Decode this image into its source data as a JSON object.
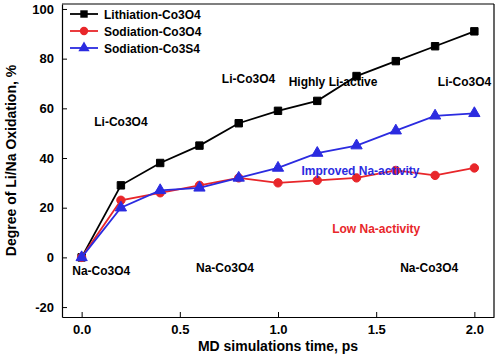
{
  "chart_data": {
    "type": "line",
    "x_label": "MD simulations time, ps",
    "y_label": "Degree of Li/Na Oxidation, %",
    "x": [
      0,
      0.2,
      0.4,
      0.6,
      0.8,
      1.0,
      1.2,
      1.4,
      1.6,
      1.8,
      2.0
    ],
    "series": [
      {
        "name": "Lithiation-Co3O4",
        "color": "#000000",
        "marker": "square",
        "line_style": "solid",
        "values": [
          0,
          29,
          38,
          45,
          54,
          59,
          63,
          73,
          79,
          85,
          91
        ]
      },
      {
        "name": "Sodiation-Co3O4",
        "color": "#e8262a",
        "marker": "circle",
        "line_style": "solid",
        "values": [
          0,
          23,
          26,
          29,
          32,
          30,
          31,
          32,
          35,
          33,
          36
        ]
      },
      {
        "name": "Sodiation-Co3S4",
        "color": "#2b2be0",
        "marker": "triangle",
        "line_style": "solid",
        "values": [
          0,
          20,
          27,
          28,
          32,
          36,
          42,
          45,
          51,
          57,
          58
        ]
      }
    ],
    "xlim": [
      -0.1,
      2.1
    ],
    "ylim": [
      -24,
      102
    ],
    "xticks": [
      {
        "value": 0,
        "label": "0.0"
      },
      {
        "value": 0.5,
        "label": "0.5"
      },
      {
        "value": 1,
        "label": "1.0"
      },
      {
        "value": 1.5,
        "label": "1.5"
      },
      {
        "value": 2,
        "label": "2.0"
      }
    ],
    "yticks": [
      -20,
      0,
      20,
      40,
      60,
      80,
      100
    ],
    "legend": "upper left",
    "annotations": [
      {
        "text": "Highly Li-active",
        "x": 1.28,
        "y": 69,
        "color": "#000000"
      },
      {
        "text": "Improved Na-activity",
        "x": 1.42,
        "y": 33,
        "color": "#2b2be0"
      },
      {
        "text": "Low Na-activity",
        "x": 1.5,
        "y": 10,
        "color": "#e8262a"
      },
      {
        "text": "Li-Co3O4",
        "x": 0.2,
        "y": 53,
        "color": "#000000"
      },
      {
        "text": "Li-Co3O4",
        "x": 0.85,
        "y": 70,
        "color": "#000000"
      },
      {
        "text": "Li-Co3O4",
        "x": 1.95,
        "y": 69,
        "color": "#000000"
      },
      {
        "text": "Na-Co3O4",
        "x": 0.1,
        "y": -7,
        "color": "#000000"
      },
      {
        "text": "Na-Co3O4",
        "x": 0.73,
        "y": -6,
        "color": "#000000"
      },
      {
        "text": "Na-Co3O4",
        "x": 1.77,
        "y": -6,
        "color": "#000000"
      }
    ]
  }
}
